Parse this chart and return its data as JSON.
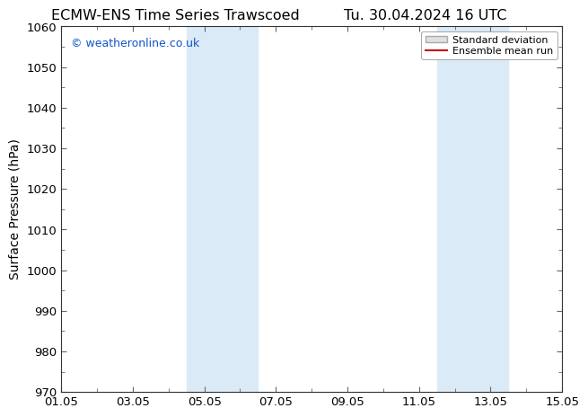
{
  "title_left": "ECMW-ENS Time Series Trawscoed",
  "title_right": "Tu. 30.04.2024 16 UTC",
  "ylabel": "Surface Pressure (hPa)",
  "ylim": [
    970,
    1060
  ],
  "yticks": [
    970,
    980,
    990,
    1000,
    1010,
    1020,
    1030,
    1040,
    1050,
    1060
  ],
  "xlim_days": [
    0,
    14
  ],
  "xtick_labels": [
    "01.05",
    "03.05",
    "05.05",
    "07.05",
    "09.05",
    "11.05",
    "13.05",
    "15.05"
  ],
  "xtick_positions": [
    0,
    2,
    4,
    6,
    8,
    10,
    12,
    14
  ],
  "shaded_bands": [
    {
      "x_start": 3.5,
      "x_end": 5.5
    },
    {
      "x_start": 10.5,
      "x_end": 12.5
    }
  ],
  "shade_color": "#daeaf7",
  "bg_color": "#ffffff",
  "watermark_text": "© weatheronline.co.uk",
  "watermark_color": "#1155cc",
  "legend_std_color": "#cccccc",
  "legend_mean_color": "#cc0000",
  "title_fontsize": 11.5,
  "axis_fontsize": 10,
  "tick_fontsize": 9.5,
  "watermark_fontsize": 9
}
